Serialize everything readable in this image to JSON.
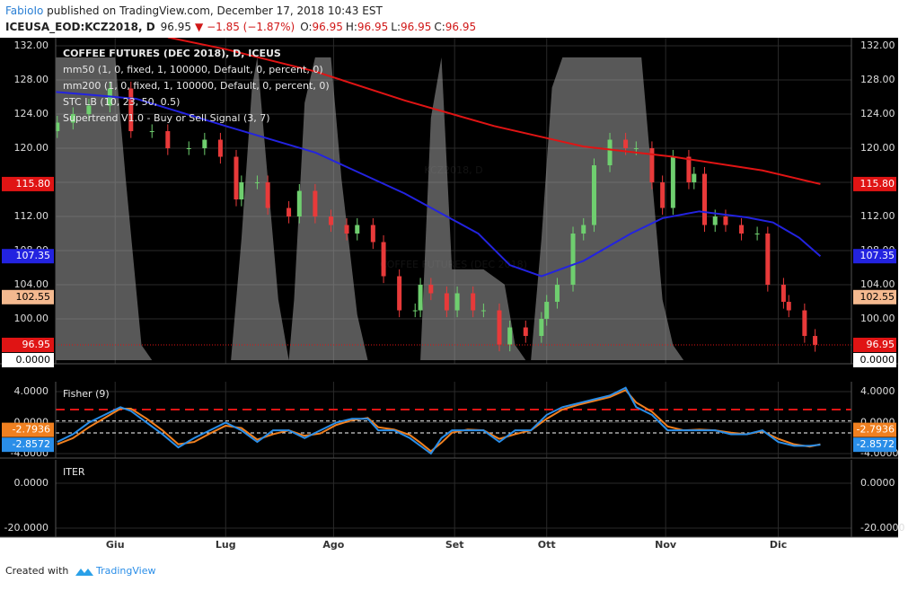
{
  "header": {
    "author": "FabioIo",
    "published": " published on TradingView.com, December 17, 2018 10:43 EST",
    "symbol": "ICEUSA_EOD:KCZ2018, D",
    "price": "96.95",
    "change": "▼ −1.85 (−1.87%)",
    "ohlc": [
      {
        "label": "O:",
        "value": "96.95"
      },
      {
        "label": "H:",
        "value": "96.95"
      },
      {
        "label": "L:",
        "value": "96.95"
      },
      {
        "label": "C:",
        "value": "96.95"
      }
    ]
  },
  "footer": {
    "created": "Created with",
    "brand": "TradingView"
  },
  "chart_data": [
    {
      "type": "candlestick",
      "title": "COFFEE FUTURES (DEC 2018), D, ICEUS",
      "watermark": [
        "KCZ2018, D",
        "COFFEE FUTURES (DEC 2018)"
      ],
      "legend_extra": "Supertrend V1.0 - Buy or Sell Signal (3, 7)",
      "xlim": [
        -11.3,
        139.9
      ],
      "xticks": [
        {
          "value": 0,
          "label": "Giu"
        },
        {
          "value": 21,
          "label": "Lug"
        },
        {
          "value": 41.5,
          "label": "Ago"
        },
        {
          "value": 64.5,
          "label": "Set"
        },
        {
          "value": 82,
          "label": "Ott"
        },
        {
          "value": 104.6,
          "label": "Nov"
        },
        {
          "value": 126,
          "label": "Dic"
        }
      ],
      "ylim": [
        94.74,
        132.95
      ],
      "yticks": [
        {
          "value": 100,
          "label": "100.00"
        },
        {
          "value": 104,
          "label": "104.00"
        },
        {
          "value": 108,
          "label": "108.00"
        },
        {
          "value": 112,
          "label": "112.00"
        },
        {
          "value": 116,
          "label": "116.00"
        },
        {
          "value": 120,
          "label": "120.00"
        },
        {
          "value": 124,
          "label": "124.00"
        },
        {
          "value": 128,
          "label": "128.00"
        },
        {
          "value": 132,
          "label": "132.00"
        }
      ],
      "y2lim": [
        -1.2,
        106.5
      ],
      "y2ticks": [
        {
          "value": 0,
          "label": "0.0000"
        }
      ],
      "grid": true,
      "up_color": "#6fcf6f",
      "down_color": "#e83a3a",
      "candles": {
        "x": [
          -11,
          -8,
          -5,
          -1,
          3,
          7,
          10,
          14,
          17,
          20,
          23,
          24,
          27,
          29,
          33,
          35,
          38,
          41,
          44,
          46,
          49,
          51,
          54,
          57,
          58,
          60,
          63,
          65,
          68,
          70,
          73,
          75,
          78,
          81,
          82,
          84,
          87,
          89,
          91,
          94,
          97,
          99,
          102,
          104,
          106,
          109,
          110,
          112,
          114,
          116,
          119,
          122,
          124,
          127,
          128,
          131,
          133
        ],
        "open": [
          122,
          123,
          124,
          125,
          127,
          122,
          122,
          120,
          120,
          121,
          119,
          114,
          116,
          116,
          113,
          112,
          115,
          112,
          111,
          110,
          111,
          109,
          105,
          101,
          101,
          104,
          103,
          101,
          103,
          101,
          101,
          97,
          99,
          98,
          100,
          102,
          104,
          110,
          111,
          118,
          121,
          120,
          120,
          116,
          113,
          119,
          116,
          117,
          111,
          112,
          111,
          110,
          110,
          104,
          102,
          101,
          98
        ],
        "high": [
          123.8,
          124.8,
          125.8,
          127.8,
          127.8,
          122.8,
          122.8,
          120.8,
          121.8,
          121.8,
          119.8,
          116.8,
          116.8,
          116.8,
          113.8,
          115.8,
          115.8,
          112.8,
          111.8,
          111.8,
          111.8,
          109.8,
          105.8,
          101.8,
          104.8,
          104.8,
          103.8,
          103.8,
          103.8,
          101.8,
          101.8,
          99.8,
          99.8,
          100.8,
          102.8,
          104.8,
          110.8,
          111.8,
          118.8,
          121.8,
          121.8,
          120.8,
          120.8,
          116.8,
          119.8,
          119.8,
          117.8,
          117.8,
          112.8,
          112.8,
          111.8,
          110.8,
          110.8,
          104.8,
          102.8,
          101.8,
          98.8
        ],
        "low": [
          121.2,
          122.2,
          123.2,
          124.2,
          121.2,
          121.2,
          119.2,
          119.2,
          119.2,
          118.2,
          113.2,
          113.2,
          115.2,
          112.2,
          111.2,
          111.2,
          111.2,
          110.2,
          109.2,
          109.2,
          108.2,
          104.2,
          100.2,
          100.2,
          100.2,
          102.2,
          100.2,
          100.2,
          100.2,
          100.2,
          96.2,
          96.2,
          97.2,
          97.2,
          99.2,
          101.2,
          103.2,
          109.2,
          110.2,
          117.2,
          119.2,
          119.2,
          115.2,
          112.2,
          112.2,
          115.2,
          115.2,
          110.2,
          110.2,
          110.2,
          109.2,
          109.2,
          103.2,
          101.2,
          100.2,
          97.2,
          96.15
        ],
        "close": [
          123,
          124,
          125,
          127,
          122,
          122,
          120,
          120,
          121,
          119,
          114,
          116,
          116,
          113,
          112,
          115,
          112,
          111,
          110,
          111,
          109,
          105,
          101,
          101,
          104,
          103,
          101,
          103,
          101,
          101,
          97,
          99,
          98,
          100,
          102,
          104,
          110,
          111,
          118,
          121,
          120,
          120,
          116,
          113,
          119,
          116,
          117,
          111,
          112,
          111,
          110,
          110,
          104,
          102,
          101,
          98,
          96.95
        ]
      },
      "series": [
        {
          "name": "STC LB (10, 23, 50, 0.5)",
          "type": "area",
          "axis": "y2",
          "color": "#a0a0a0",
          "x": [
            -11.3,
            -5,
            0,
            2,
            5,
            7,
            22,
            24,
            26,
            27,
            29,
            31,
            33,
            34,
            36,
            38,
            41,
            43,
            46,
            48,
            58,
            60,
            62,
            64,
            70,
            74,
            76,
            78,
            79,
            81,
            83,
            85,
            100,
            102,
            104,
            106,
            108,
            134
          ],
          "values": [
            100,
            100,
            100,
            60,
            5,
            0,
            0,
            40,
            90,
            100,
            60,
            20,
            0,
            20,
            85,
            100,
            100,
            60,
            15,
            0,
            0,
            80,
            100,
            30,
            30,
            25,
            5,
            0,
            0,
            40,
            90,
            100,
            100,
            60,
            20,
            5,
            0,
            0
          ]
        },
        {
          "name": "mm50 (1, 0, fixed, 1, 100000, Default, 0, percent, 0)",
          "type": "line",
          "color": "#2323e0",
          "x": [
            -11.3,
            4,
            21,
            38,
            55,
            69,
            75,
            81,
            89,
            98,
            104,
            111,
            120,
            125,
            130,
            134
          ],
          "values": [
            126.6,
            125.8,
            122.6,
            119.5,
            114.7,
            110,
            106.3,
            105,
            106.8,
            110,
            111.8,
            112.6,
            111.9,
            111.3,
            109.5,
            107.35
          ]
        },
        {
          "name": "mm200 (1, 0, fixed, 1, 100000, Default, 0, percent, 0)",
          "type": "line",
          "color": "#e01414",
          "x": [
            10,
            21,
            38,
            55,
            72,
            89,
            106,
            123,
            134
          ],
          "values": [
            133,
            131.6,
            129,
            125.6,
            122.6,
            120.2,
            119,
            117.4,
            115.8
          ]
        }
      ],
      "price_labels": [
        {
          "value": 115.8,
          "label": "115.80",
          "color": "#e01414"
        },
        {
          "value": 107.35,
          "label": "107.35",
          "color": "#2323e0"
        },
        {
          "value": 102.55,
          "label": "102.55",
          "color": "#f4b98f"
        },
        {
          "value": 96.95,
          "label": "96.95",
          "color": "#e01414"
        }
      ]
    },
    {
      "type": "line",
      "title": "Fisher (9)",
      "ylim": [
        -4.58,
        5.28
      ],
      "yticks": [
        {
          "value": 4,
          "label": "4.0000"
        },
        {
          "value": 0,
          "label": "0.0000"
        },
        {
          "value": -4,
          "label": "-4.0000"
        }
      ],
      "levels": [
        {
          "value": 1.68,
          "color": "#e01414"
        },
        {
          "value": 0.2,
          "color": "#ffffff"
        },
        {
          "value": -1.33,
          "color": "#ffffff"
        }
      ],
      "x": [
        -11,
        -8,
        -5,
        -2,
        1,
        3,
        6,
        9,
        12,
        15,
        18,
        21,
        24,
        27,
        30,
        33,
        36,
        39,
        42,
        45,
        48,
        50,
        53,
        56,
        58,
        60,
        62,
        64,
        67,
        70,
        73,
        76,
        79,
        82,
        85,
        88,
        91,
        94,
        97,
        99,
        102,
        105,
        108,
        111,
        114,
        117,
        120,
        123,
        126,
        129,
        132,
        134
      ],
      "series": [
        {
          "color": "#f08020",
          "values": [
            -2.8,
            -2,
            -0.6,
            0.6,
            1.8,
            1.8,
            0.5,
            -1,
            -2.8,
            -2.5,
            -1.4,
            -0.4,
            -0.7,
            -2.2,
            -1.5,
            -1,
            -1.7,
            -1.4,
            -0.3,
            0.3,
            0.6,
            -0.6,
            -0.9,
            -1.6,
            -2.6,
            -3.7,
            -2.6,
            -1.3,
            -0.9,
            -1,
            -2.1,
            -1.5,
            -1,
            0.5,
            1.7,
            2.3,
            2.8,
            3.3,
            4.2,
            2.6,
            1.4,
            -0.5,
            -1,
            -0.9,
            -1,
            -1.3,
            -1.5,
            -1.1,
            -2.1,
            -2.8,
            -3.1,
            -2.7936
          ]
        },
        {
          "color": "#2a8ee8",
          "values": [
            -2.5,
            -1.5,
            0,
            1,
            2,
            1.5,
            0,
            -1.5,
            -3.2,
            -2,
            -1,
            0,
            -1,
            -2.5,
            -1,
            -1,
            -2,
            -1,
            0,
            0.5,
            0.5,
            -1,
            -1,
            -2,
            -3,
            -4,
            -2,
            -1,
            -1,
            -1,
            -2.5,
            -1,
            -1,
            1,
            2,
            2.5,
            3,
            3.5,
            4.5,
            2,
            1,
            -1,
            -1,
            -1,
            -1,
            -1.5,
            -1.5,
            -1,
            -2.5,
            -3,
            -3,
            -2.8572
          ]
        }
      ]
    },
    {
      "type": "line",
      "title": "ITER",
      "ylim": [
        -24,
        10.4
      ],
      "yticks": [
        {
          "value": 0,
          "label": "0.0000"
        },
        {
          "value": -20,
          "label": "-20.0000"
        }
      ],
      "series": []
    }
  ]
}
